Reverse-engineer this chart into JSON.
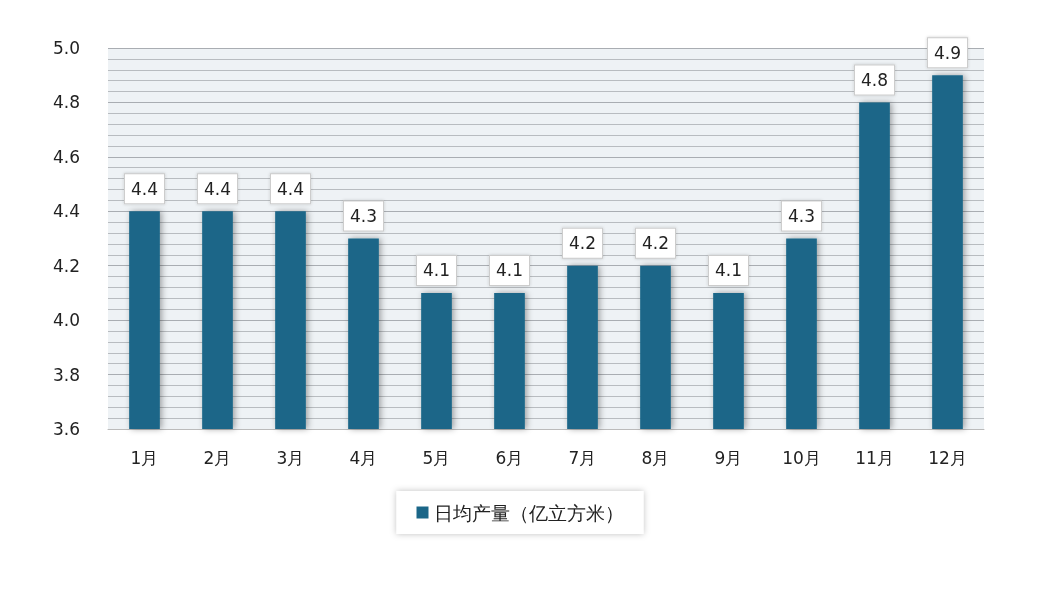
{
  "chart_data": {
    "type": "bar",
    "categories": [
      "1月",
      "2月",
      "3月",
      "4月",
      "5月",
      "6月",
      "7月",
      "8月",
      "9月",
      "10月",
      "11月",
      "12月"
    ],
    "series": [
      {
        "name": "日均产量（亿立方米）",
        "color": "#1b6688",
        "values": [
          4.4,
          4.4,
          4.4,
          4.3,
          4.1,
          4.1,
          4.2,
          4.2,
          4.1,
          4.3,
          4.8,
          4.9
        ]
      }
    ],
    "ylim": [
      3.6,
      5.0
    ],
    "yticks": [
      3.6,
      3.8,
      {
        "value": 4,
        "label": "4.0"
      },
      4.2,
      4.4,
      4.6,
      4.8,
      {
        "value": 5,
        "label": "5.0"
      }
    ],
    "grid": "y",
    "legend": "bottom",
    "data_labels": true
  }
}
